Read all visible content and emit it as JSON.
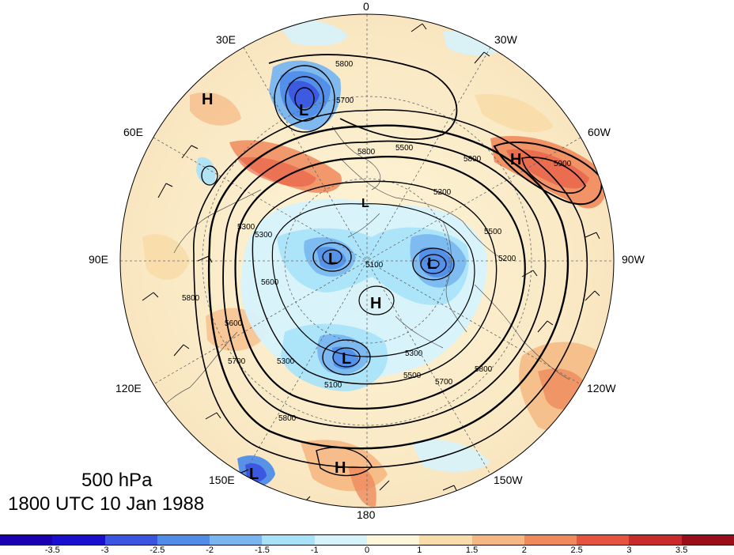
{
  "title": {
    "level": "500 hPa",
    "time": "1800 UTC 10 Jan 1988"
  },
  "longitude_labels": [
    "0",
    "30W",
    "60W",
    "90W",
    "120W",
    "150W",
    "180",
    "150E",
    "120E",
    "90E",
    "60E",
    "30E"
  ],
  "pressure_systems": {
    "highs": [
      "H",
      "H",
      "H",
      "H"
    ],
    "lows": [
      "L",
      "L",
      "L",
      "L",
      "L",
      "L"
    ]
  },
  "contour_labels": [
    "5800",
    "5700",
    "5800",
    "5300",
    "5500",
    "5200",
    "5800",
    "5900",
    "5300",
    "5100",
    "5600",
    "5500",
    "5200",
    "5300",
    "5600",
    "5700",
    "5800",
    "5500",
    "5700",
    "5800",
    "5300",
    "5100",
    "5800"
  ],
  "colorbar": {
    "ticks": [
      "-3.5",
      "-3",
      "-2.5",
      "-2",
      "-1.5",
      "-1",
      "0",
      "1",
      "1.5",
      "2",
      "2.5",
      "3",
      "3.5"
    ],
    "colors": [
      "#1a0fcf",
      "#3a55e0",
      "#4f8de9",
      "#79b6f0",
      "#a7e2f8",
      "#d6f2fb",
      "#fdf6d9",
      "#f8ddaa",
      "#f5b883",
      "#ef8a5c",
      "#e6543f",
      "#c92b2b",
      "#9a0e1a"
    ]
  }
}
